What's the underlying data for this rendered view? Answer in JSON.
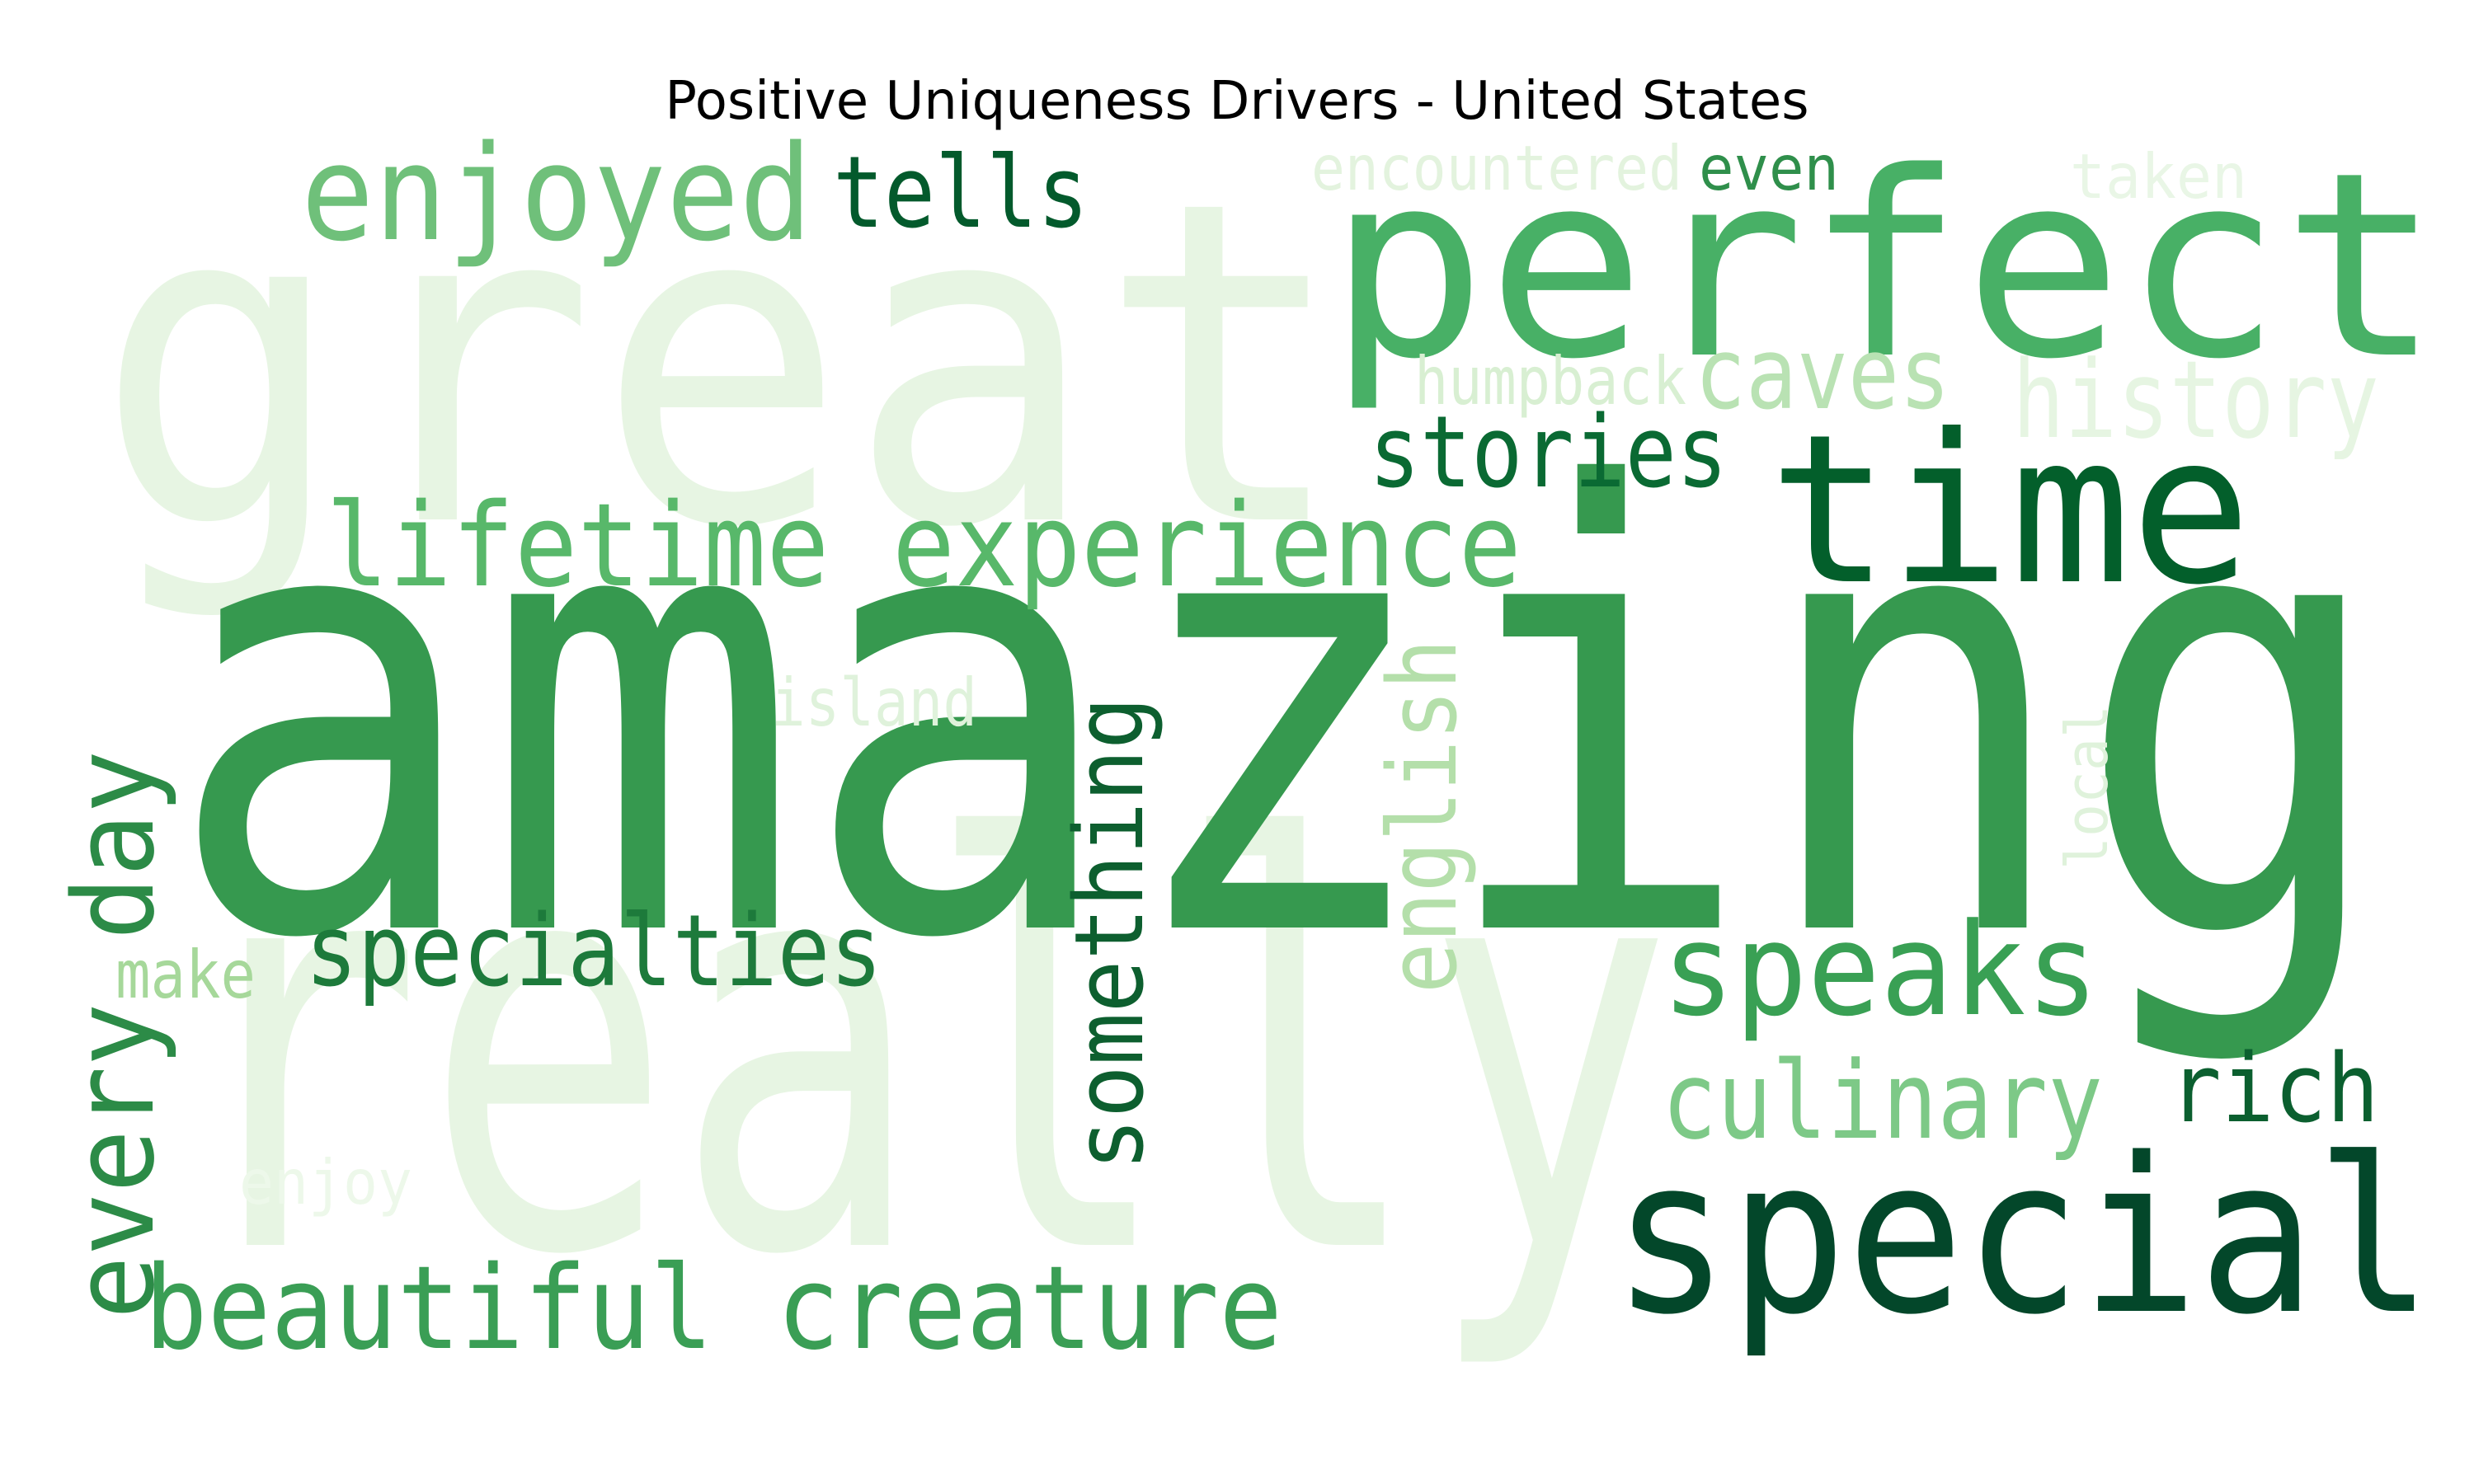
{
  "title": "Positive Uniqueness Drivers - United States",
  "words": [
    {
      "text": "great",
      "color": "#e7f5e3"
    },
    {
      "text": "really",
      "color": "#e7f5e3"
    },
    {
      "text": "perfect",
      "color": "#48b066"
    },
    {
      "text": "amazing",
      "color": "#36994f"
    },
    {
      "text": "time",
      "color": "#035f2b"
    },
    {
      "text": "special",
      "color": "#03472a"
    },
    {
      "text": "enjoyed",
      "color": "#6fc07a"
    },
    {
      "text": "tells",
      "color": "#035a2c"
    },
    {
      "text": "encountered",
      "color": "#e3f3de"
    },
    {
      "text": "even",
      "color": "#2f8f4b"
    },
    {
      "text": "taken",
      "color": "#e9f6e6"
    },
    {
      "text": "humpback",
      "color": "#d8efd2"
    },
    {
      "text": "caves",
      "color": "#b9e2b3"
    },
    {
      "text": "history",
      "color": "#e6f5e2"
    },
    {
      "text": "stories",
      "color": "#0a6a33"
    },
    {
      "text": "lifetime experience",
      "color": "#58b86a"
    },
    {
      "text": "island",
      "color": "#dff2db"
    },
    {
      "text": "every day",
      "color": "#2c8b47"
    },
    {
      "text": "something",
      "color": "#0d5f2f"
    },
    {
      "text": "english",
      "color": "#b4dfaa"
    },
    {
      "text": "local",
      "color": "#dff2db"
    },
    {
      "text": "specialties",
      "color": "#1d7a3b"
    },
    {
      "text": "make",
      "color": "#a6d89a"
    },
    {
      "text": "speaks",
      "color": "#39a054"
    },
    {
      "text": "culinary",
      "color": "#7dc987"
    },
    {
      "text": "rich",
      "color": "#0b5f2f"
    },
    {
      "text": "enjoy",
      "color": "#edf8ea"
    },
    {
      "text": "beautiful creature",
      "color": "#3a9e55"
    }
  ]
}
